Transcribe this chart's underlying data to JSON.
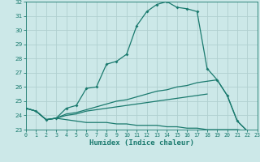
{
  "xlabel": "Humidex (Indice chaleur)",
  "background_color": "#cce8e8",
  "grid_color": "#b0d0d0",
  "line_color": "#1a7a6e",
  "x_values": [
    0,
    1,
    2,
    3,
    4,
    5,
    6,
    7,
    8,
    9,
    10,
    11,
    12,
    13,
    14,
    15,
    16,
    17,
    18,
    19,
    20,
    21,
    22,
    23
  ],
  "series1": [
    24.5,
    24.3,
    23.7,
    23.8,
    24.5,
    24.7,
    25.9,
    26.0,
    27.6,
    27.8,
    28.3,
    30.3,
    31.3,
    31.8,
    32.0,
    31.6,
    31.5,
    31.3,
    27.3,
    26.5,
    25.4,
    23.6,
    22.9,
    null
  ],
  "series2": [
    24.5,
    24.3,
    23.7,
    23.8,
    23.7,
    23.6,
    23.5,
    23.5,
    23.5,
    23.4,
    23.4,
    23.3,
    23.3,
    23.3,
    23.2,
    23.2,
    23.1,
    23.1,
    23.0,
    23.0,
    23.0,
    23.0,
    22.9,
    null
  ],
  "series3": [
    24.5,
    24.3,
    23.7,
    23.8,
    24.1,
    24.2,
    24.4,
    24.6,
    24.8,
    25.0,
    25.1,
    25.3,
    25.5,
    25.7,
    25.8,
    26.0,
    26.1,
    26.3,
    26.4,
    26.5,
    25.4,
    23.6,
    22.9,
    null
  ],
  "series4": [
    24.5,
    24.3,
    23.7,
    23.8,
    24.0,
    24.1,
    24.3,
    24.4,
    24.5,
    24.6,
    24.7,
    24.8,
    24.9,
    25.0,
    25.1,
    25.2,
    25.3,
    25.4,
    25.5,
    null,
    null,
    null,
    null,
    null
  ],
  "ylim": [
    23,
    32
  ],
  "xlim": [
    0,
    23
  ],
  "yticks": [
    23,
    24,
    25,
    26,
    27,
    28,
    29,
    30,
    31,
    32
  ],
  "xticks": [
    0,
    1,
    2,
    3,
    4,
    5,
    6,
    7,
    8,
    9,
    10,
    11,
    12,
    13,
    14,
    15,
    16,
    17,
    18,
    19,
    20,
    21,
    22,
    23
  ]
}
